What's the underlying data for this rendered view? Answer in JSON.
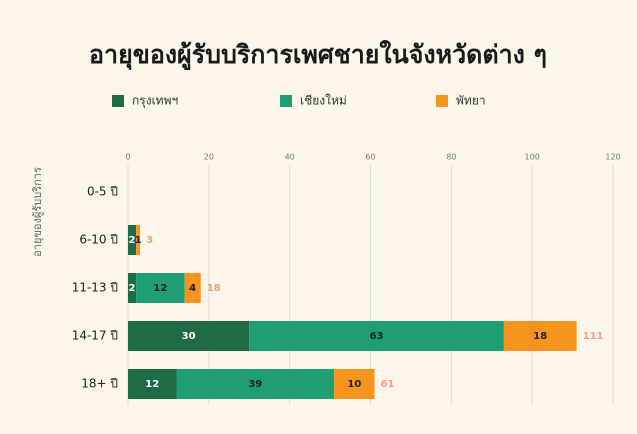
{
  "chart_data": {
    "type": "stacked-barh",
    "title": "อายุของผู้รับบริการเพศชายในจังหวัดต่าง ๆ",
    "y_label": "อายุของผู้รับบริการ",
    "categories": [
      "0-5 ปี",
      "6-10 ปี",
      "11-13 ปี",
      "14-17 ปี",
      "18+ ปี"
    ],
    "series": [
      {
        "name": "กรุงเทพฯ",
        "color": "#1e6b45",
        "values": [
          0,
          2,
          2,
          30,
          12
        ]
      },
      {
        "name": "เชียงใหม่",
        "color": "#1f9e73",
        "values": [
          0,
          0,
          12,
          63,
          39
        ]
      },
      {
        "name": "พัทยา",
        "color": "#f7941d",
        "values": [
          0,
          1,
          4,
          18,
          10
        ]
      }
    ],
    "totals": [
      null,
      3,
      18,
      111,
      61
    ],
    "xlim": [
      0,
      120
    ],
    "xticks": [
      0,
      20,
      40,
      60,
      80,
      100,
      120
    ],
    "grid": true,
    "legend": "top"
  }
}
